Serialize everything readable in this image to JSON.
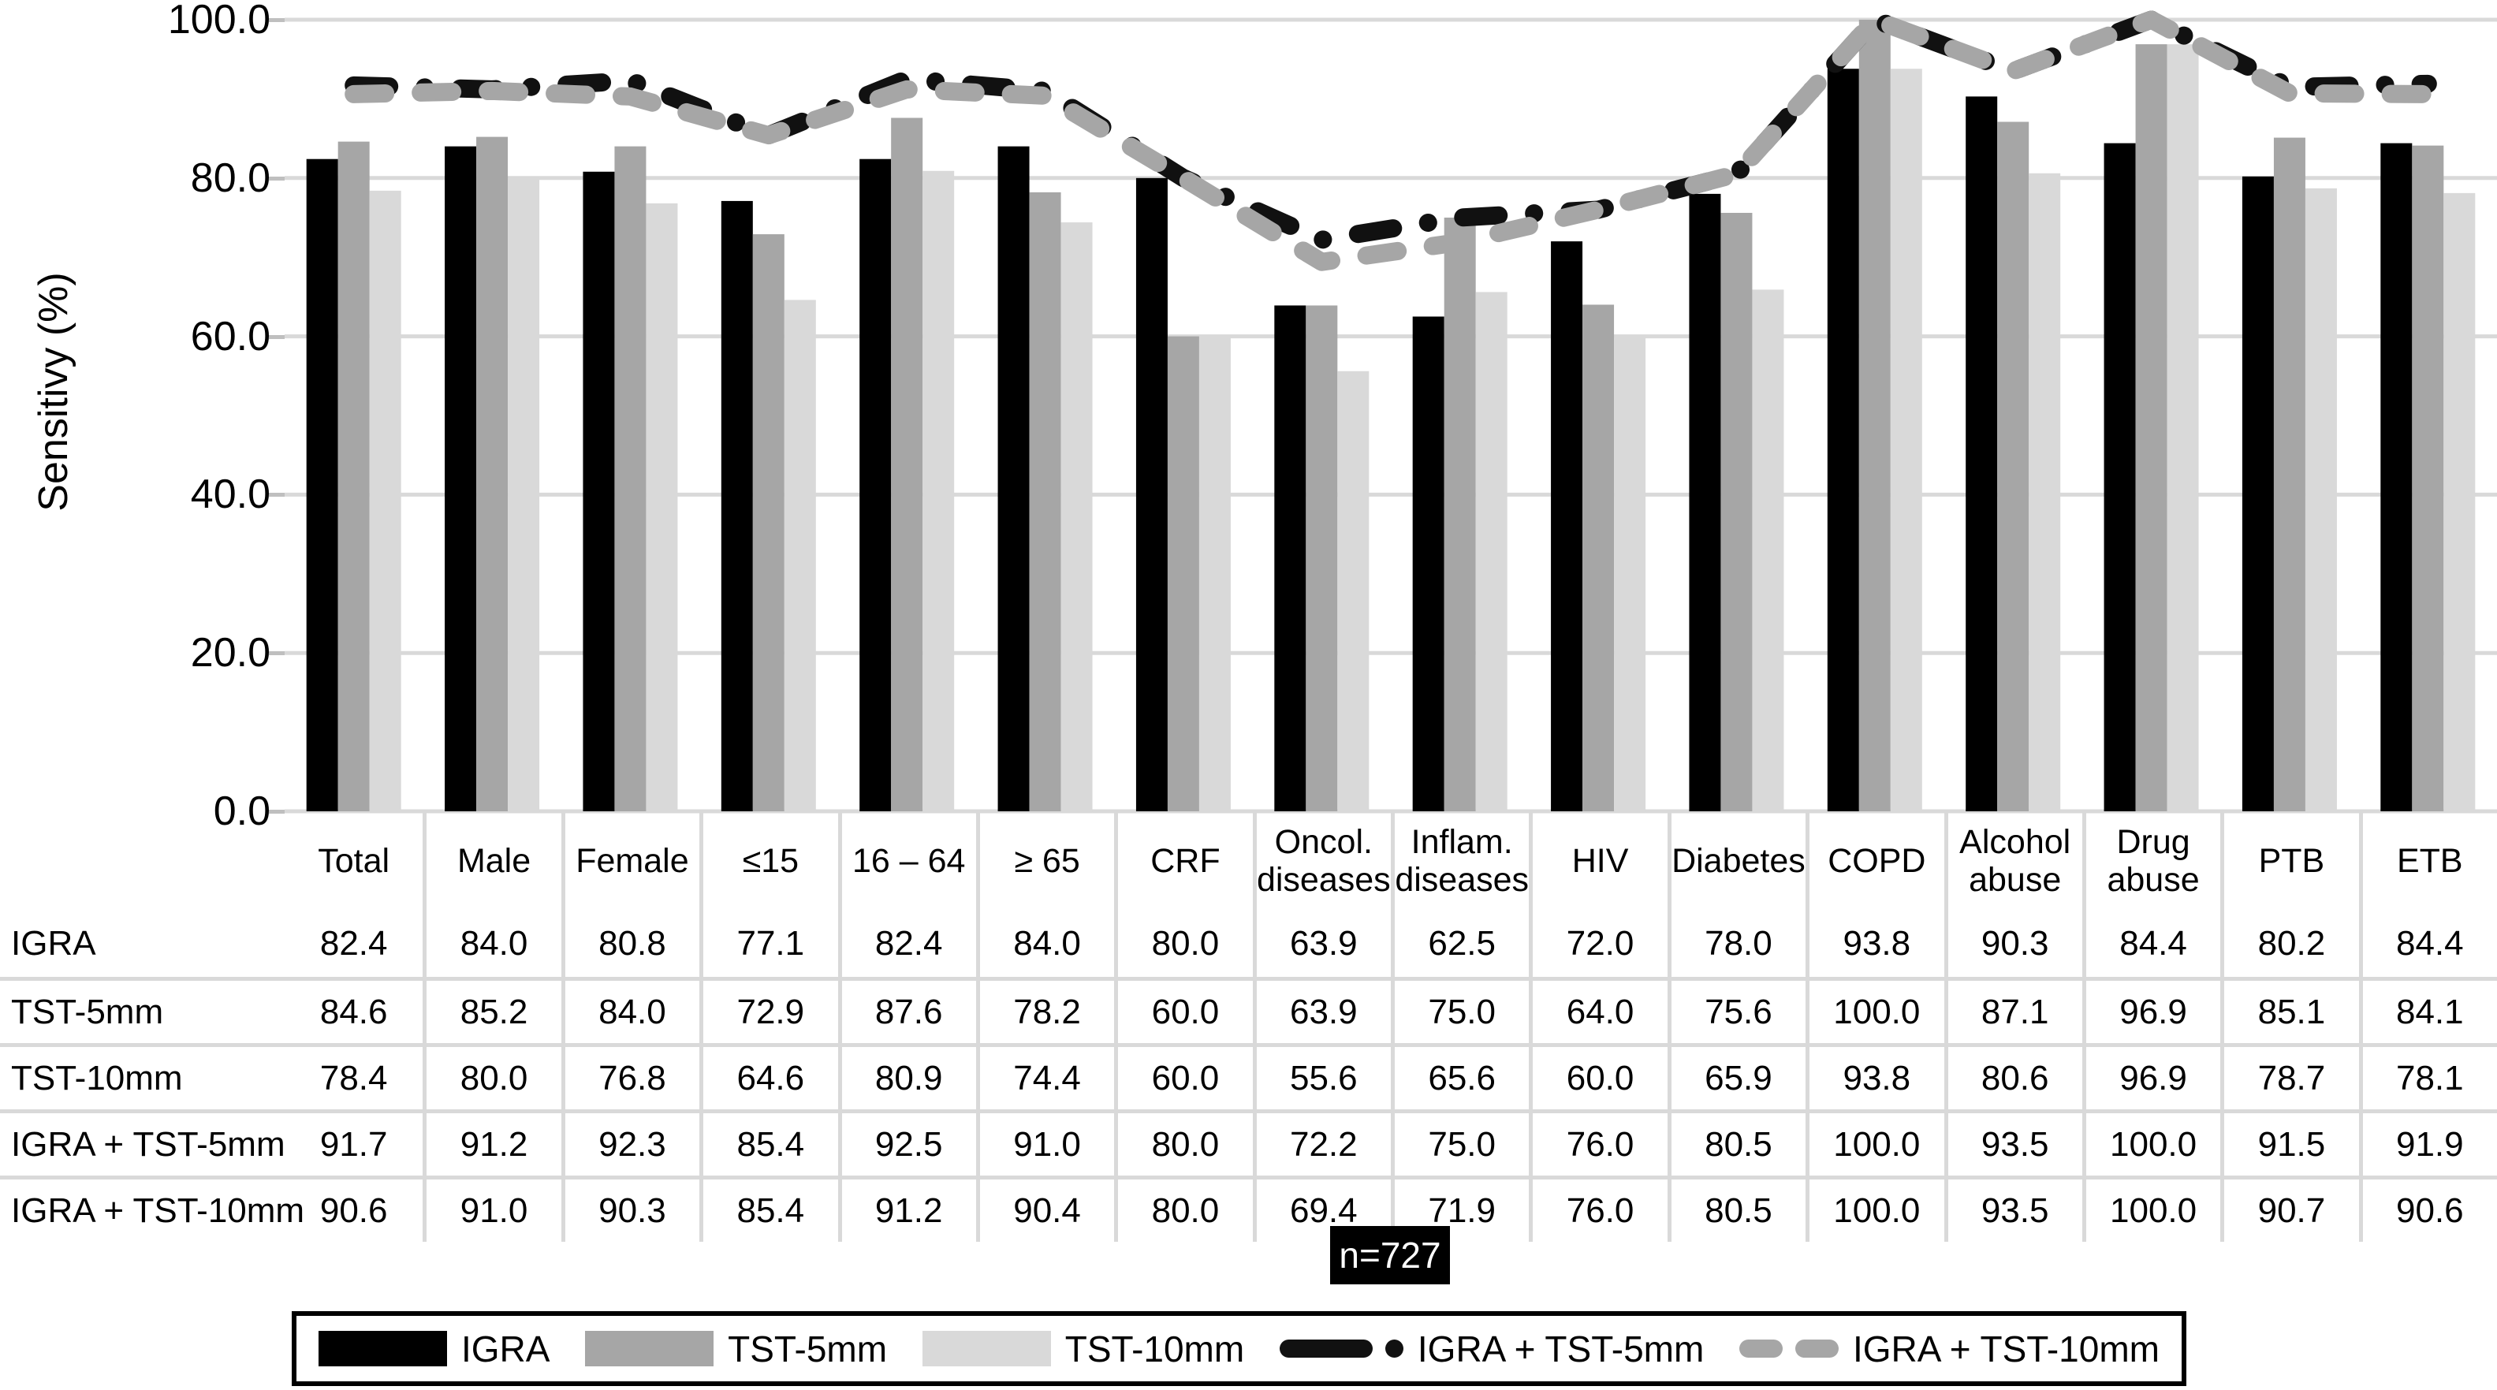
{
  "chart_data": {
    "type": "bar+line",
    "ylabel": "Sensitivy (%)",
    "ylim": [
      0,
      100
    ],
    "yticks": [
      0,
      20,
      40,
      60,
      80,
      100
    ],
    "ytick_labels": [
      "0.0",
      "20.0",
      "40.0",
      "60.0",
      "80.0",
      "100.0"
    ],
    "grid": true,
    "legend_position": "bottom-box",
    "categories": [
      "Total",
      "Male",
      "Female",
      "≤15",
      "16 – 64",
      "≥ 65",
      "CRF",
      "Oncol.\ndiseases",
      "Inflam.\ndiseases",
      "HIV",
      "Diabetes",
      "COPD",
      "Alcohol\nabuse",
      "Drug\nabuse",
      "PTB",
      "ETB"
    ],
    "bar_series": [
      {
        "name": "IGRA",
        "color": "#000000",
        "values": [
          82.4,
          84.0,
          80.8,
          77.1,
          82.4,
          84.0,
          80.0,
          63.9,
          62.5,
          72.0,
          78.0,
          93.8,
          90.3,
          84.4,
          80.2,
          84.4
        ]
      },
      {
        "name": "TST-5mm",
        "color": "#a6a6a6",
        "values": [
          84.6,
          85.2,
          84.0,
          72.9,
          87.6,
          78.2,
          60.0,
          63.9,
          75.0,
          64.0,
          75.6,
          100.0,
          87.1,
          96.9,
          85.1,
          84.1
        ]
      },
      {
        "name": "TST-10mm",
        "color": "#d9d9d9",
        "values": [
          78.4,
          80.0,
          76.8,
          64.6,
          80.9,
          74.4,
          60.0,
          55.6,
          65.6,
          60.0,
          65.9,
          93.8,
          80.6,
          96.9,
          78.7,
          78.1
        ]
      }
    ],
    "line_series": [
      {
        "name": "IGRA + TST-5mm",
        "color": "#111111",
        "dash_style": "long-dash-dot",
        "values": [
          91.7,
          91.2,
          92.3,
          85.4,
          92.5,
          91.0,
          80.0,
          72.2,
          75.0,
          76.0,
          80.5,
          100.0,
          93.5,
          100.0,
          91.5,
          91.9
        ]
      },
      {
        "name": "IGRA + TST-10mm",
        "color": "#a6a6a6",
        "dash_style": "dash",
        "values": [
          90.6,
          91.0,
          90.3,
          85.4,
          91.2,
          90.4,
          80.0,
          69.4,
          71.9,
          76.0,
          80.5,
          100.0,
          93.5,
          100.0,
          90.7,
          90.6
        ]
      }
    ]
  },
  "annotation": {
    "n_label": "n=727"
  },
  "colors": {
    "bar_black": "#000000",
    "bar_gray": "#a6a6a6",
    "bar_light_gray": "#d9d9d9",
    "gridline": "#d9d9d9",
    "axis_tick": "#bfbfbf",
    "table_divider": "#d9d9d9",
    "annotation_bg": "#000000",
    "annotation_text": "#ffffff"
  }
}
